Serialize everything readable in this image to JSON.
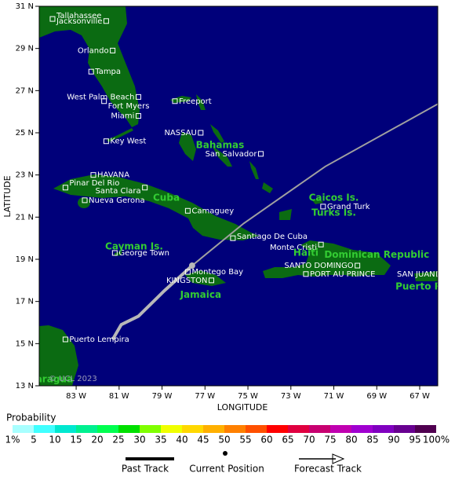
{
  "chart_data": {
    "type": "map",
    "x_label": "LONGITUDE",
    "y_label": "LATITUDE",
    "xlim": [
      -84.72,
      -66.16
    ],
    "ylim": [
      13,
      31
    ],
    "xticks": [
      {
        "value": -83,
        "label": "83 W"
      },
      {
        "value": -81,
        "label": "81 W"
      },
      {
        "value": -79,
        "label": "79 W"
      },
      {
        "value": -77,
        "label": "77 W"
      },
      {
        "value": -75,
        "label": "75 W"
      },
      {
        "value": -73,
        "label": "73 W"
      },
      {
        "value": -71,
        "label": "71 W"
      },
      {
        "value": -69,
        "label": "69 W"
      },
      {
        "value": -67,
        "label": "67 W"
      }
    ],
    "yticks": [
      {
        "value": 31,
        "label": "31 N"
      },
      {
        "value": 29,
        "label": "29 N"
      },
      {
        "value": 27,
        "label": "27 N"
      },
      {
        "value": 25,
        "label": "25 N"
      },
      {
        "value": 23,
        "label": "23 N"
      },
      {
        "value": 21,
        "label": "21 N"
      },
      {
        "value": 19,
        "label": "19 N"
      },
      {
        "value": 17,
        "label": "17 N"
      },
      {
        "value": 15,
        "label": "15 N"
      },
      {
        "value": 13,
        "label": "13 N"
      }
    ],
    "places": [
      {
        "name": "Tallahassee",
        "lon": -84.1,
        "lat": 30.4
      },
      {
        "name": "Jacksonville",
        "lon": -81.6,
        "lat": 30.3
      },
      {
        "name": "Orlando",
        "lon": -81.3,
        "lat": 28.9
      },
      {
        "name": "Tampa",
        "lon": -82.3,
        "lat": 27.9
      },
      {
        "name": "West Palm Beach",
        "lon": -80.1,
        "lat": 26.7
      },
      {
        "name": "Fort Myers",
        "lon": -81.7,
        "lat": 26.5
      },
      {
        "name": "Miami",
        "lon": -80.1,
        "lat": 25.8
      },
      {
        "name": "Key West",
        "lon": -81.6,
        "lat": 24.6
      },
      {
        "name": "Freeport",
        "lon": -78.4,
        "lat": 26.5
      },
      {
        "name": "NASSAU",
        "lon": -77.2,
        "lat": 25.0
      },
      {
        "name": "San Salvador",
        "lon": -74.4,
        "lat": 24.0
      },
      {
        "name": "HAVANA",
        "lon": -82.2,
        "lat": 23.0
      },
      {
        "name": "Pinar Del Rio",
        "lon": -83.5,
        "lat": 22.4
      },
      {
        "name": "Santa Clara",
        "lon": -79.8,
        "lat": 22.4
      },
      {
        "name": "Nueva Gerona",
        "lon": -82.6,
        "lat": 21.8
      },
      {
        "name": "Camaguey",
        "lon": -77.8,
        "lat": 21.3
      },
      {
        "name": "Grand Turk",
        "lon": -71.5,
        "lat": 21.5
      },
      {
        "name": "Santiago De Cuba",
        "lon": -75.7,
        "lat": 20.0
      },
      {
        "name": "Monte Cristi",
        "lon": -71.6,
        "lat": 19.7
      },
      {
        "name": "George Town",
        "lon": -81.2,
        "lat": 19.3
      },
      {
        "name": "Montego Bay",
        "lon": -77.8,
        "lat": 18.4
      },
      {
        "name": "KINGSTON",
        "lon": -76.7,
        "lat": 18.0
      },
      {
        "name": "SANTO DOMINGO",
        "lon": -69.9,
        "lat": 18.7
      },
      {
        "name": "PORT AU PRINCE",
        "lon": -72.3,
        "lat": 18.3
      },
      {
        "name": "SAN JUAN",
        "lon": -66.1,
        "lat": 18.3
      },
      {
        "name": "Puerto Lempira",
        "lon": -83.5,
        "lat": 15.2
      }
    ],
    "regions": [
      {
        "name": "Bahamas",
        "lon": -76.3,
        "lat": 24.4
      },
      {
        "name": "Cuba",
        "lon": -78.8,
        "lat": 21.9
      },
      {
        "name": "Jamaica",
        "lon": -77.2,
        "lat": 17.3
      },
      {
        "name": "Haiti",
        "lon": -72.3,
        "lat": 19.3
      },
      {
        "name": "Dominican Republic",
        "lon": -69.0,
        "lat": 19.2
      },
      {
        "name": "Caicos Is.",
        "lon": -71.0,
        "lat": 21.9
      },
      {
        "name": "Turks Is.",
        "lon": -71.0,
        "lat": 21.2
      },
      {
        "name": "Cayman Is.",
        "lon": -80.3,
        "lat": 19.6
      },
      {
        "name": "Puerto Rico",
        "lon": -66.7,
        "lat": 17.7
      },
      {
        "name": "Nicaragua",
        "lon": -84.4,
        "lat": 13.3
      }
    ],
    "past_track": {
      "name": "Past Track",
      "lon": [
        -81.3,
        -80.9,
        -80.1,
        -78.9,
        -77.6
      ],
      "lat": [
        15.2,
        15.9,
        16.3,
        17.5,
        18.7
      ]
    },
    "current_position": {
      "name": "Current Position",
      "lon": -77.6,
      "lat": 18.7
    },
    "forecast_track": {
      "name": "Forecast Track",
      "lon": [
        -77.6,
        -75.2,
        -71.4,
        -66.1
      ],
      "lat": [
        18.7,
        20.7,
        23.4,
        26.4
      ]
    },
    "copyright": "© UCL 2023",
    "legend": {
      "title": "Probability",
      "ticks": [
        {
          "value": 1,
          "label": "1%"
        },
        5,
        10,
        15,
        20,
        25,
        30,
        35,
        40,
        45,
        50,
        55,
        60,
        65,
        70,
        75,
        80,
        85,
        90,
        95,
        {
          "value": 100,
          "label": "100%"
        }
      ],
      "colors": [
        "#a8ffff",
        "#40ffff",
        "#00e8d0",
        "#00f090",
        "#00ff50",
        "#00e000",
        "#80ff00",
        "#f0ff00",
        "#ffd800",
        "#ffb000",
        "#ff8000",
        "#ff5000",
        "#ff0000",
        "#e00040",
        "#c80070",
        "#c000b0",
        "#a000d0",
        "#8000c0",
        "#680090",
        "#500050"
      ]
    }
  }
}
